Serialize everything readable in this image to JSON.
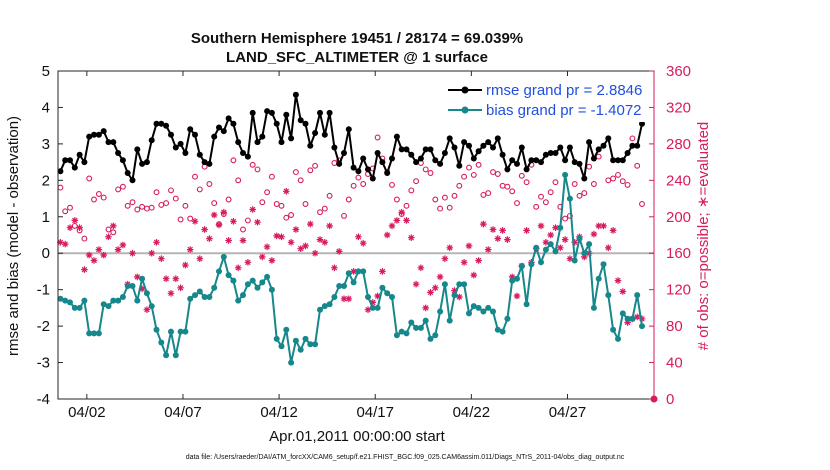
{
  "chart_data": {
    "type": "line",
    "title": "Southern Hemisphere 19451 / 28174 = 69.039%",
    "subtitle": "LAND_SFC_ALTIMETER @ 1 surface",
    "xlabel": "Apr.01,2011 00:00:00 start",
    "ylabel_left": "rmse and bias (model - observation)",
    "ylabel_right": "# of obs: o=possible; ∗=evaluated",
    "footnote": "data file: /Users/raeder/DAI/ATM_forcXX/CAM6_setup/f.e21.FHIST_BGC.f09_025.CAM6assim.011/Diags_NTrS_2011-04/obs_diag_output.nc",
    "xlim": [
      0,
      31
    ],
    "ylim_left": [
      -4,
      5
    ],
    "ylim_right": [
      0,
      360
    ],
    "xticks": [
      1.5,
      6.5,
      11.5,
      16.5,
      21.5,
      26.5
    ],
    "xtick_labels": [
      "04/02",
      "04/07",
      "04/12",
      "04/17",
      "04/22",
      "04/27"
    ],
    "yticks_left": [
      "-4",
      "-3",
      "-2",
      "-1",
      "0",
      "1",
      "2",
      "3",
      "4",
      "5"
    ],
    "yticks_right": [
      "0",
      "40",
      "80",
      "120",
      "160",
      "200",
      "240",
      "280",
      "320",
      "360"
    ],
    "zero_line": 0,
    "legend_position": "top-right",
    "x": [
      0.125,
      0.375,
      0.625,
      0.875,
      1.125,
      1.375,
      1.625,
      1.875,
      2.125,
      2.375,
      2.625,
      2.875,
      3.125,
      3.375,
      3.625,
      3.875,
      4.125,
      4.375,
      4.625,
      4.875,
      5.125,
      5.375,
      5.625,
      5.875,
      6.125,
      6.375,
      6.625,
      6.875,
      7.125,
      7.375,
      7.625,
      7.875,
      8.125,
      8.375,
      8.625,
      8.875,
      9.125,
      9.375,
      9.625,
      9.875,
      10.125,
      10.375,
      10.625,
      10.875,
      11.125,
      11.375,
      11.625,
      11.875,
      12.125,
      12.375,
      12.625,
      12.875,
      13.125,
      13.375,
      13.625,
      13.875,
      14.125,
      14.375,
      14.625,
      14.875,
      15.125,
      15.375,
      15.625,
      15.875,
      16.125,
      16.375,
      16.625,
      16.875,
      17.125,
      17.375,
      17.625,
      17.875,
      18.125,
      18.375,
      18.625,
      18.875,
      19.125,
      19.375,
      19.625,
      19.875,
      20.125,
      20.375,
      20.625,
      20.875,
      21.125,
      21.375,
      21.625,
      21.875,
      22.125,
      22.375,
      22.625,
      22.875,
      23.125,
      23.375,
      23.625,
      23.875,
      24.125,
      24.375,
      24.625,
      24.875,
      25.125,
      25.375,
      25.625,
      25.875,
      26.125,
      26.375,
      26.625,
      26.875,
      27.125,
      27.375,
      27.625,
      27.875,
      28.125,
      28.375,
      28.625,
      28.875,
      29.125,
      29.375,
      29.625,
      29.875,
      30.125,
      30.375
    ],
    "series": [
      {
        "name": "rmse grand pr = 2.8846",
        "color": "#000000",
        "axis": "left",
        "values": [
          2.25,
          2.55,
          2.55,
          2.35,
          2.7,
          2.5,
          3.2,
          3.25,
          3.25,
          3.35,
          3.05,
          3.05,
          2.75,
          2.55,
          2.2,
          2.0,
          2.85,
          2.45,
          2.5,
          3.1,
          3.55,
          3.55,
          3.5,
          3.25,
          2.9,
          3.0,
          2.75,
          3.4,
          3.25,
          2.7,
          2.5,
          2.45,
          3.2,
          3.45,
          3.35,
          3.7,
          3.55,
          3.05,
          2.75,
          2.65,
          3.85,
          3.05,
          3.2,
          3.9,
          3.85,
          3.55,
          3.05,
          3.8,
          3.15,
          4.35,
          3.65,
          3.55,
          2.95,
          3.3,
          3.85,
          3.25,
          3.85,
          2.9,
          2.45,
          2.75,
          3.4,
          2.35,
          2.25,
          2.6,
          2.3,
          2.05,
          2.75,
          2.5,
          2.2,
          2.6,
          3.2,
          2.85,
          2.85,
          2.7,
          2.5,
          2.6,
          2.85,
          2.85,
          2.55,
          2.45,
          2.75,
          3.15,
          2.9,
          2.4,
          3.05,
          2.95,
          2.6,
          2.8,
          2.95,
          3.05,
          2.9,
          3.15,
          2.7,
          2.3,
          2.55,
          2.45,
          2.9,
          2.3,
          2.55,
          2.55,
          2.5,
          2.7,
          2.75,
          2.75,
          2.9,
          2.55,
          2.9,
          2.5,
          2.45,
          2.05,
          3.05,
          2.6,
          2.85,
          2.95,
          3.15,
          2.55,
          2.55,
          2.55,
          2.75,
          2.95,
          2.95,
          3.55
        ]
      },
      {
        "name": "bias grand pr = -1.4072",
        "color": "#16878a",
        "axis": "left",
        "values": [
          -1.25,
          -1.3,
          -1.35,
          -1.5,
          -1.5,
          -1.3,
          -2.2,
          -2.2,
          -2.2,
          -1.4,
          -1.45,
          -1.3,
          -1.3,
          -1.2,
          -0.9,
          -0.9,
          -1.3,
          -0.7,
          -1.1,
          -1.45,
          -2.1,
          -2.45,
          -2.8,
          -2.15,
          -2.8,
          -2.15,
          -2.15,
          -1.25,
          -1.15,
          -1.05,
          -1.2,
          -1.2,
          -0.95,
          -0.5,
          -0.1,
          -0.6,
          -0.75,
          -1.3,
          -1.15,
          -0.85,
          -0.75,
          -0.95,
          -0.8,
          -0.65,
          -1.0,
          -2.35,
          -2.55,
          -2.1,
          -3.0,
          -2.4,
          -2.65,
          -2.35,
          -2.5,
          -2.5,
          -1.55,
          -1.45,
          -1.4,
          -1.2,
          -0.9,
          -0.9,
          -0.55,
          -0.8,
          -0.5,
          -0.5,
          -1.2,
          -1.5,
          -1.5,
          -0.95,
          -1.1,
          -1.2,
          -2.25,
          -2.15,
          -2.2,
          -1.9,
          -2.05,
          -2.05,
          -1.85,
          -2.35,
          -2.25,
          -1.6,
          -0.85,
          -1.85,
          -1.15,
          -0.85,
          -0.85,
          -1.65,
          -1.45,
          -1.5,
          -1.6,
          -1.5,
          -1.6,
          -2.1,
          -2.15,
          -1.8,
          -0.75,
          -0.7,
          -0.35,
          -1.4,
          -0.3,
          0.15,
          -0.25,
          0.1,
          0.25,
          0.05,
          0.7,
          2.15,
          1.5,
          -0.2,
          0.4,
          0.0,
          0.25,
          -1.5,
          -0.7,
          -0.3,
          -1.15,
          -2.1,
          -2.35,
          -1.65,
          -1.8,
          -1.8,
          -1.15,
          -2.0
        ]
      }
    ],
    "obs_possible": {
      "name": "possible",
      "color": "#d81b60",
      "axis": "right",
      "values": [
        232,
        206,
        210,
        190,
        185,
        176,
        242,
        219,
        225,
        221,
        186,
        183,
        230,
        233,
        212,
        216,
        208,
        211,
        209,
        210,
        227,
        213,
        215,
        229,
        220,
        197,
        212,
        198,
        244,
        230,
        255,
        236,
        215,
        192,
        203,
        219,
        262,
        240,
        186,
        196,
        257,
        252,
        216,
        227,
        244,
        214,
        212,
        199,
        202,
        249,
        240,
        214,
        251,
        256,
        205,
        209,
        223,
        259,
        262,
        201,
        219,
        234,
        243,
        236,
        247,
        253,
        287,
        264,
        249,
        235,
        219,
        203,
        212,
        229,
        239,
        259,
        252,
        248,
        219,
        209,
        221,
        210,
        223,
        234,
        244,
        254,
        246,
        257,
        224,
        226,
        249,
        247,
        234,
        233,
        228,
        215,
        245,
        238,
        257,
        211,
        222,
        216,
        227,
        238,
        211,
        198,
        201,
        236,
        223,
        226,
        255,
        236,
        266,
        316,
        240,
        242,
        246,
        239,
        235,
        286,
        256,
        214
      ]
    },
    "obs_evaluated": {
      "name": "evaluated",
      "color": "#d81b60",
      "axis": "right",
      "values": [
        172,
        170,
        188,
        196,
        188,
        142,
        158,
        152,
        164,
        158,
        178,
        190,
        164,
        169,
        126,
        160,
        134,
        121,
        98,
        160,
        172,
        154,
        132,
        116,
        132,
        122,
        147,
        164,
        195,
        154,
        186,
        176,
        202,
        191,
        205,
        174,
        195,
        144,
        174,
        150,
        208,
        194,
        156,
        167,
        152,
        179,
        178,
        228,
        172,
        186,
        165,
        168,
        192,
        160,
        175,
        172,
        190,
        144,
        162,
        110,
        110,
        140,
        178,
        171,
        98,
        106,
        113,
        140,
        180,
        190,
        196,
        205,
        196,
        177,
        126,
        144,
        100,
        117,
        122,
        134,
        154,
        166,
        119,
        112,
        150,
        168,
        136,
        152,
        192,
        164,
        186,
        176,
        185,
        175,
        134,
        113,
        146,
        185,
        150,
        165,
        190,
        172,
        180,
        188,
        166,
        175,
        154,
        172,
        178,
        156,
        160,
        181,
        190,
        190,
        166,
        185,
        130,
        118,
        84,
        88,
        90,
        88
      ]
    }
  }
}
